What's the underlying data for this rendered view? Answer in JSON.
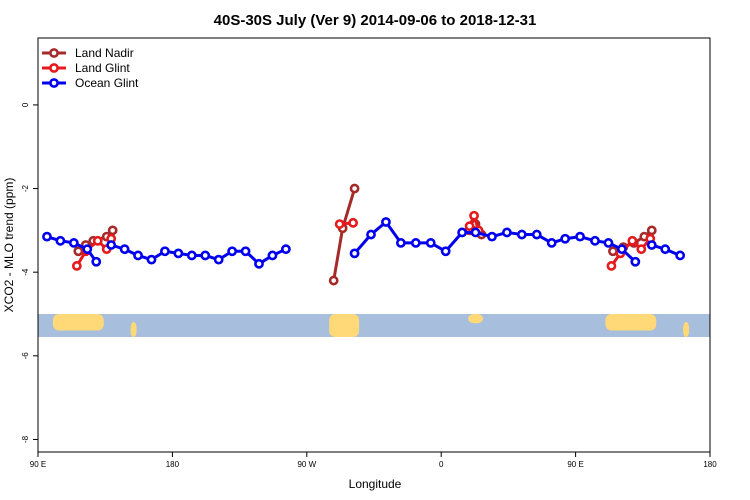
{
  "chart_data": {
    "type": "line",
    "title": "40S-30S July (Ver 9)   2014-09-06 to 2018-12-31",
    "xlabel": "Longitude",
    "ylabel": "XCO2 - MLO trend (ppm)",
    "x_ticks": [
      {
        "value": 90,
        "label": "90 E"
      },
      {
        "value": 180,
        "label": "180"
      },
      {
        "value": 270,
        "label": "90 W"
      },
      {
        "value": 360,
        "label": "0"
      },
      {
        "value": 450,
        "label": "90 E"
      },
      {
        "value": 540,
        "label": "180"
      }
    ],
    "y_ticks": [
      0,
      -2,
      -4,
      -6,
      -8
    ],
    "xlim": [
      90,
      540
    ],
    "ylim": [
      -8.3,
      1.6
    ],
    "grid": false,
    "legend_position": "top-left",
    "map_band": {
      "lon_range": [
        90,
        540
      ],
      "y_range": [
        -5.55,
        -5.0
      ],
      "ocean_color": "#a7bedd",
      "land_color": "#ffd978"
    },
    "series": [
      {
        "name": "Land Nadir",
        "color": "#a52a2a",
        "segments": [
          [
            [
              117,
              -3.5
            ],
            [
              122,
              -3.35
            ],
            [
              127,
              -3.25
            ],
            [
              136,
              -3.15
            ],
            [
              140,
              -3.0
            ]
          ],
          [
            [
              288,
              -4.2
            ],
            [
              294,
              -2.95
            ],
            [
              302,
              -2.0
            ]
          ],
          [
            [
              379,
              -3.0
            ],
            [
              383,
              -2.85
            ],
            [
              387,
              -3.1
            ]
          ],
          [
            [
              475,
              -3.5
            ],
            [
              482,
              -3.4
            ],
            [
              489,
              -3.3
            ],
            [
              496,
              -3.15
            ],
            [
              501,
              -3.0
            ]
          ]
        ]
      },
      {
        "name": "Land Glint",
        "color": "#e41a1c",
        "segments": [
          [
            [
              116,
              -3.85
            ],
            [
              122,
              -3.5
            ],
            [
              130,
              -3.25
            ],
            [
              136,
              -3.45
            ],
            [
              139,
              -3.2
            ]
          ],
          [
            [
              292,
              -2.85
            ],
            [
              301,
              -2.82
            ]
          ],
          [
            [
              379,
              -2.9
            ],
            [
              382,
              -2.65
            ],
            [
              385,
              -3.0
            ]
          ],
          [
            [
              474,
              -3.85
            ],
            [
              480,
              -3.55
            ],
            [
              488,
              -3.25
            ],
            [
              494,
              -3.45
            ],
            [
              500,
              -3.2
            ]
          ]
        ]
      },
      {
        "name": "Ocean Glint",
        "color": "#0000ee",
        "segments": [
          [
            [
              96,
              -3.15
            ],
            [
              105,
              -3.25
            ],
            [
              114,
              -3.3
            ],
            [
              123,
              -3.45
            ],
            [
              129,
              -3.75
            ]
          ],
          [
            [
              139,
              -3.35
            ],
            [
              148,
              -3.45
            ],
            [
              157,
              -3.6
            ],
            [
              166,
              -3.7
            ],
            [
              175,
              -3.5
            ],
            [
              184,
              -3.55
            ],
            [
              193,
              -3.6
            ],
            [
              202,
              -3.6
            ],
            [
              211,
              -3.7
            ],
            [
              220,
              -3.5
            ],
            [
              229,
              -3.5
            ],
            [
              238,
              -3.8
            ],
            [
              247,
              -3.6
            ],
            [
              256,
              -3.45
            ]
          ],
          [
            [
              302,
              -3.55
            ],
            [
              313,
              -3.1
            ],
            [
              323,
              -2.8
            ],
            [
              333,
              -3.3
            ],
            [
              343,
              -3.3
            ],
            [
              353,
              -3.3
            ],
            [
              363,
              -3.5
            ],
            [
              374,
              -3.05
            ],
            [
              383,
              -3.05
            ],
            [
              394,
              -3.15
            ],
            [
              404,
              -3.05
            ],
            [
              414,
              -3.1
            ],
            [
              424,
              -3.1
            ],
            [
              434,
              -3.3
            ],
            [
              443,
              -3.2
            ],
            [
              453,
              -3.15
            ],
            [
              463,
              -3.25
            ],
            [
              472,
              -3.3
            ],
            [
              481,
              -3.45
            ],
            [
              490,
              -3.75
            ]
          ],
          [
            [
              501,
              -3.35
            ],
            [
              510,
              -3.45
            ],
            [
              520,
              -3.6
            ]
          ]
        ]
      }
    ]
  }
}
